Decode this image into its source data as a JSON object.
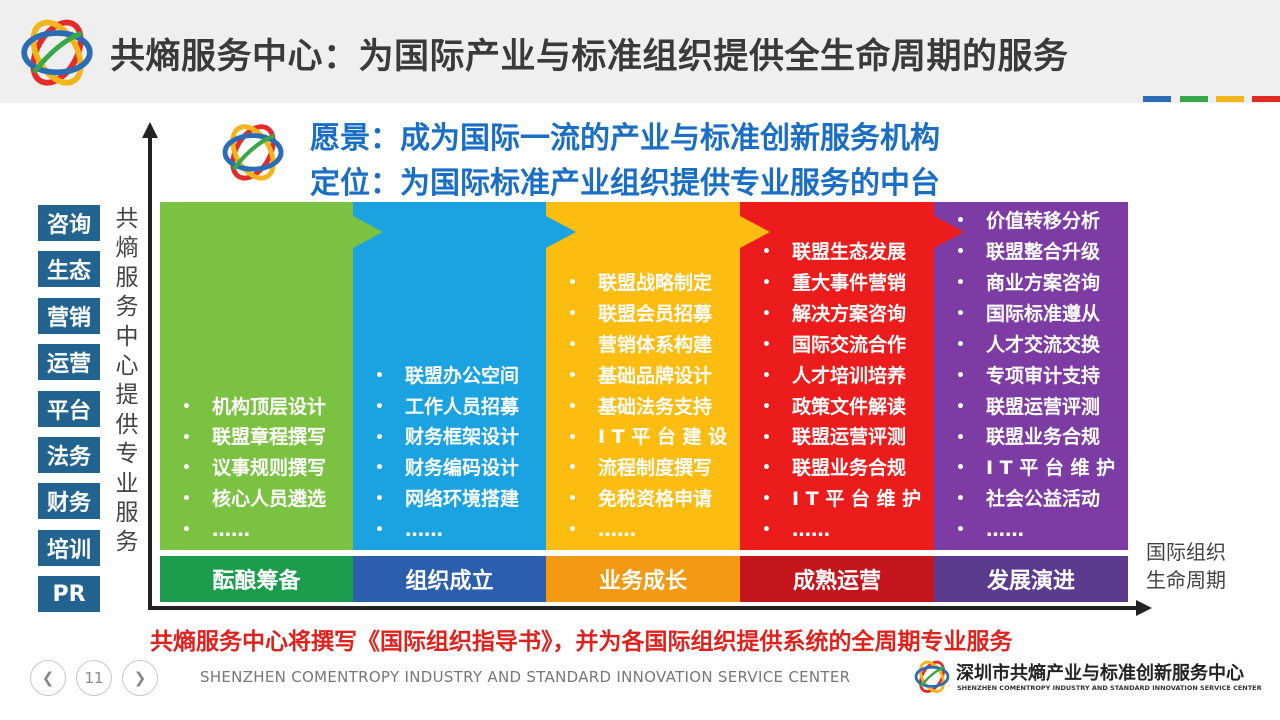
{
  "header": {
    "title": "共熵服务中心：为国际产业与标准组织提供全生命周期的服务"
  },
  "colors": {
    "blue": "#2a6db5",
    "green": "#3aa64a",
    "yellow": "#f2b61a",
    "red": "#e02b22"
  },
  "vision": {
    "line1": "愿景：成为国际一流的产业与标准创新服务机构",
    "line2": "定位：为国际标准产业组织提供专业服务的中台"
  },
  "sidebar": {
    "tags": [
      "咨询",
      "生态",
      "营销",
      "运营",
      "平台",
      "法务",
      "财务",
      "培训",
      "PR"
    ]
  },
  "y_axis_label": [
    "共",
    "熵",
    "服",
    "务",
    "中",
    "心",
    "提",
    "供",
    "专",
    "业",
    "服",
    "务"
  ],
  "x_axis_label": {
    "line1": "国际组织",
    "line2": "生命周期"
  },
  "stages": [
    {
      "name": "酝酿筹备",
      "color": "#7cc242",
      "label_color": "#1a9c4c",
      "items": [
        "机构顶层设计",
        "联盟章程撰写",
        "议事规则撰写",
        "核心人员遴选",
        "……"
      ]
    },
    {
      "name": "组织成立",
      "color": "#1aa3e0",
      "label_color": "#2b5fae",
      "items": [
        "联盟办公空间",
        "工作人员招募",
        "财务框架设计",
        "财务编码设计",
        "网络环境搭建",
        "……"
      ]
    },
    {
      "name": "业务成长",
      "color": "#fdbd10",
      "label_color": "#f39a12",
      "items": [
        "联盟战略制定",
        "联盟会员招募",
        "营销体系构建",
        "基础品牌设计",
        "基础法务支持",
        "I T 平 台 建 设",
        "流程制度撰写",
        "免税资格申请",
        "……"
      ]
    },
    {
      "name": "成熟运营",
      "color": "#ed1c1c",
      "label_color": "#c4151c",
      "items": [
        "联盟生态发展",
        "重大事件营销",
        "解决方案咨询",
        "国际交流合作",
        "人才培训培养",
        "政策文件解读",
        "联盟运营评测",
        "联盟业务合规",
        "I T 平 台 维 护",
        "……"
      ]
    },
    {
      "name": "发展演进",
      "color": "#7d3ca3",
      "label_color": "#5c3b8e",
      "items": [
        "价值转移分析",
        "联盟整合升级",
        "商业方案咨询",
        "国际标准遵从",
        "人才交流交换",
        "专项审计支持",
        "联盟运营评测",
        "联盟业务合规",
        "I T 平 台 维 护",
        "社会公益活动",
        "……"
      ]
    }
  ],
  "footnote": "共熵服务中心将撰写《国际组织指导书》，并为各国际组织提供系统的全周期专业服务",
  "footer": {
    "prev_icon": "chevron-left-icon",
    "next_icon": "chevron-right-icon",
    "page_number": "11",
    "org_en": "SHENZHEN COMENTROPY INDUSTRY AND STANDARD INNOVATION SERVICE CENTER",
    "brand_cn": "深圳市共熵产业与标准创新服务中心",
    "brand_en": "SHENZHEN COMENTROPY INDUSTRY AND STANDARD INNOVATION SERVICE CENTER"
  }
}
